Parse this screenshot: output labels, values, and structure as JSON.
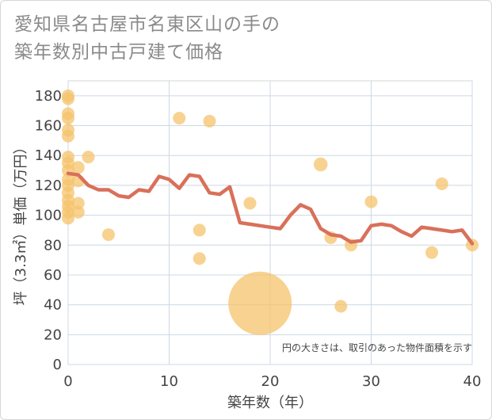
{
  "title_lines": [
    "愛知県名古屋市名東区山の手の",
    "築年数別中古戸建て価格"
  ],
  "chart_data": {
    "type": "scatter",
    "title": "愛知県名古屋市名東区山の手の築年数別中古戸建て価格",
    "xlabel": "築年数（年）",
    "ylabel": "坪（3.3㎡）単価（万円）",
    "xlim": [
      0,
      40
    ],
    "ylim": [
      0,
      190
    ],
    "xticks": [
      0,
      10,
      20,
      30,
      40
    ],
    "yticks": [
      0,
      20,
      40,
      60,
      80,
      100,
      120,
      140,
      160,
      180
    ],
    "grid": true,
    "note": "円の大きさは、取引のあった物件面積を示す",
    "colors": {
      "point": "#f5c36b",
      "line": "#d9705a",
      "grid": "#ccd8e4"
    },
    "points": [
      {
        "x": 0,
        "y": 180,
        "s": 1
      },
      {
        "x": 0,
        "y": 178,
        "s": 1
      },
      {
        "x": 0,
        "y": 168,
        "s": 1
      },
      {
        "x": 0,
        "y": 165,
        "s": 1
      },
      {
        "x": 0,
        "y": 157,
        "s": 1
      },
      {
        "x": 0,
        "y": 153,
        "s": 1
      },
      {
        "x": 0,
        "y": 139,
        "s": 1
      },
      {
        "x": 0,
        "y": 135,
        "s": 1
      },
      {
        "x": 0,
        "y": 130,
        "s": 1
      },
      {
        "x": 0,
        "y": 124,
        "s": 1
      },
      {
        "x": 0,
        "y": 120,
        "s": 1
      },
      {
        "x": 0,
        "y": 115,
        "s": 1
      },
      {
        "x": 0,
        "y": 110,
        "s": 1
      },
      {
        "x": 0,
        "y": 106,
        "s": 1
      },
      {
        "x": 0,
        "y": 102,
        "s": 1
      },
      {
        "x": 0,
        "y": 98,
        "s": 1
      },
      {
        "x": 1,
        "y": 132,
        "s": 1
      },
      {
        "x": 1,
        "y": 123,
        "s": 1
      },
      {
        "x": 1,
        "y": 108,
        "s": 1
      },
      {
        "x": 1,
        "y": 102,
        "s": 1
      },
      {
        "x": 2,
        "y": 139,
        "s": 1
      },
      {
        "x": 4,
        "y": 87,
        "s": 1
      },
      {
        "x": 11,
        "y": 165,
        "s": 1
      },
      {
        "x": 13,
        "y": 90,
        "s": 1
      },
      {
        "x": 13,
        "y": 71,
        "s": 1
      },
      {
        "x": 14,
        "y": 163,
        "s": 1
      },
      {
        "x": 18,
        "y": 108,
        "s": 1
      },
      {
        "x": 19,
        "y": 41,
        "s": 25
      },
      {
        "x": 25,
        "y": 134,
        "s": 1.2
      },
      {
        "x": 26,
        "y": 85,
        "s": 1
      },
      {
        "x": 27,
        "y": 39,
        "s": 1
      },
      {
        "x": 28,
        "y": 80,
        "s": 1
      },
      {
        "x": 30,
        "y": 109,
        "s": 1
      },
      {
        "x": 36,
        "y": 75,
        "s": 1
      },
      {
        "x": 37,
        "y": 121,
        "s": 1
      },
      {
        "x": 40,
        "y": 80,
        "s": 1
      }
    ],
    "trend": {
      "x": [
        0,
        1,
        2,
        3,
        4,
        5,
        6,
        7,
        8,
        9,
        10,
        11,
        12,
        13,
        14,
        15,
        16,
        17,
        18,
        19,
        20,
        21,
        22,
        23,
        24,
        25,
        26,
        27,
        28,
        29,
        30,
        31,
        32,
        33,
        34,
        35,
        36,
        37,
        38,
        39,
        40
      ],
      "y": [
        128,
        127,
        120,
        117,
        117,
        113,
        112,
        117,
        116,
        126,
        124,
        118,
        127,
        126,
        115,
        114,
        119,
        95,
        94,
        93,
        92,
        91,
        100,
        107,
        104,
        91,
        87,
        86,
        82,
        83,
        93,
        94,
        93,
        89,
        86,
        92,
        91,
        90,
        89,
        90,
        81
      ]
    }
  }
}
